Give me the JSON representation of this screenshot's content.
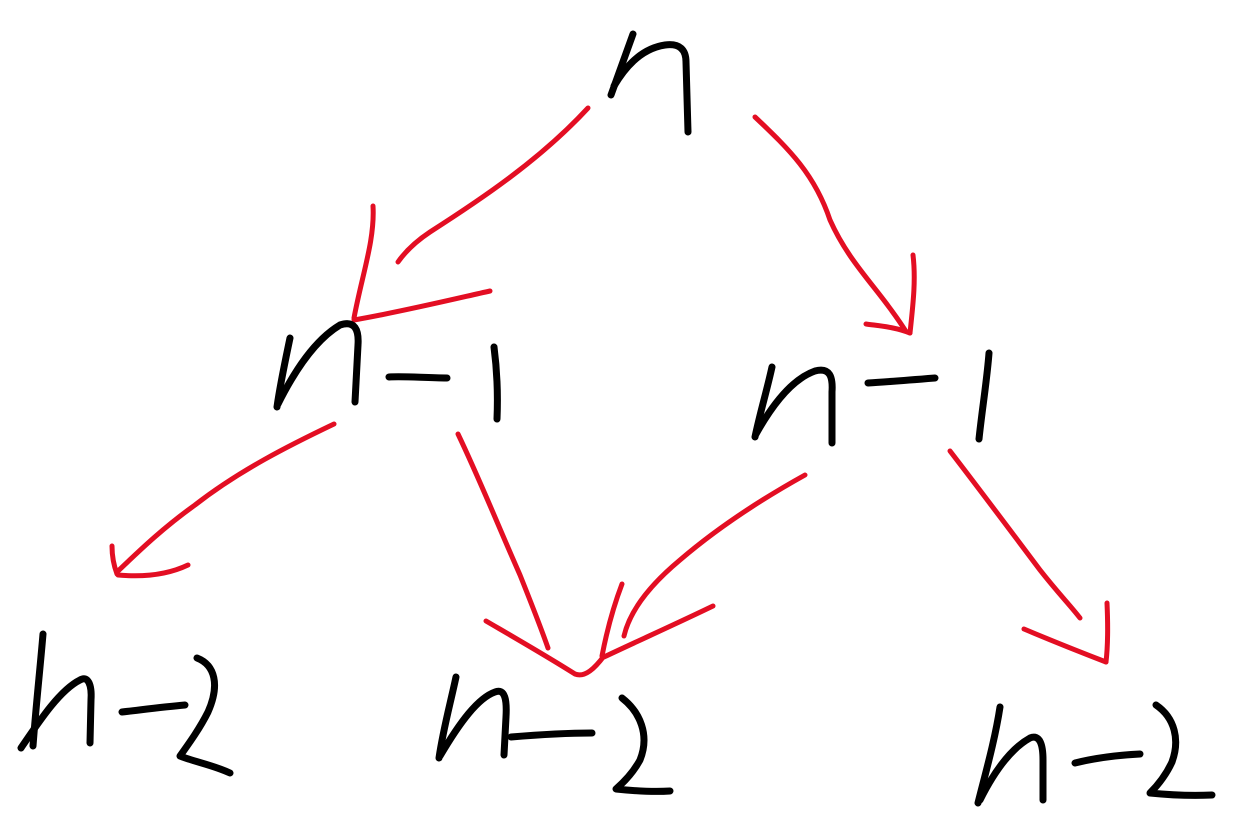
{
  "colors": {
    "node_ink": "#000000",
    "edge_ink": "#e30e23",
    "background": "#ffffff"
  },
  "nodes": [
    {
      "id": "root",
      "label": "n"
    },
    {
      "id": "left-child",
      "label": "n-1"
    },
    {
      "id": "right-child",
      "label": "n-1"
    },
    {
      "id": "left-left-grandchild",
      "label": "n-2"
    },
    {
      "id": "shared-grandchild",
      "label": "n-2"
    },
    {
      "id": "right-right-grandchild",
      "label": "n-2"
    }
  ],
  "edges": [
    {
      "from": "root",
      "to": "left-child"
    },
    {
      "from": "root",
      "to": "right-child"
    },
    {
      "from": "left-child",
      "to": "left-left-grandchild"
    },
    {
      "from": "left-child",
      "to": "shared-grandchild"
    },
    {
      "from": "right-child",
      "to": "shared-grandchild"
    },
    {
      "from": "right-child",
      "to": "right-right-grandchild"
    }
  ]
}
